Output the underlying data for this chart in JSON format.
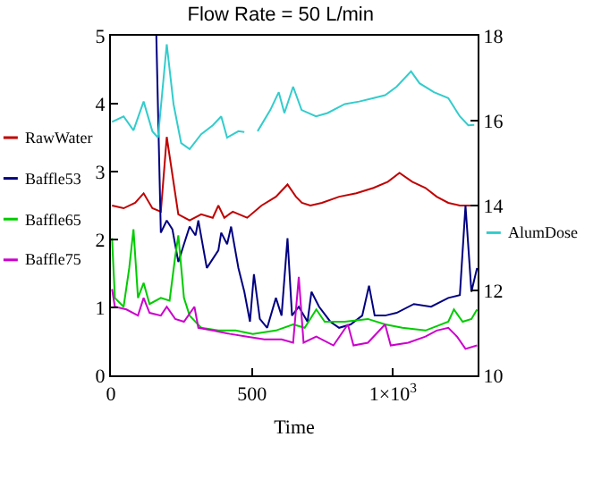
{
  "chart_data": {
    "type": "line",
    "title": "Flow Rate = 50 L/min",
    "xlabel": "Time",
    "xlim": [
      0,
      1300
    ],
    "xticks": [
      0,
      500,
      {
        "value": 1000,
        "label": "1×10$^{3}$"
      }
    ],
    "ylim": [
      0,
      5
    ],
    "yticks": [
      0,
      1,
      2,
      3,
      4,
      5
    ],
    "y2lim": [
      10,
      18
    ],
    "y2ticks": [
      10,
      12,
      14,
      16,
      18
    ],
    "grid": false,
    "legend": "left",
    "marker": "none",
    "line_style": "solid",
    "series": [
      {
        "name": "RawWater",
        "color": "#c00000",
        "x": [
          4,
          45,
          86,
          116,
          147,
          177,
          198,
          239,
          279,
          320,
          361,
          381,
          402,
          432,
          483,
          534,
          585,
          626,
          656,
          677,
          707,
          748,
          809,
          870,
          931,
          982,
          1023,
          1068,
          1115,
          1155,
          1196,
          1237,
          1288
        ],
        "values": [
          2.5,
          2.46,
          2.54,
          2.68,
          2.46,
          2.41,
          3.51,
          2.37,
          2.28,
          2.37,
          2.32,
          2.5,
          2.32,
          2.41,
          2.32,
          2.5,
          2.63,
          2.81,
          2.63,
          2.54,
          2.5,
          2.54,
          2.63,
          2.68,
          2.76,
          2.85,
          2.98,
          2.85,
          2.76,
          2.63,
          2.54,
          2.5,
          2.5
        ]
      },
      {
        "name": "Baffle53",
        "color": "#000080",
        "x": [
          161,
          177,
          198,
          218,
          239,
          259,
          279,
          300,
          310,
          340,
          381,
          391,
          412,
          426,
          452,
          473,
          493,
          507,
          528,
          554,
          585,
          605,
          626,
          642,
          666,
          697,
          711,
          738,
          778,
          809,
          850,
          891,
          915,
          935,
          972,
          1013,
          1074,
          1135,
          1196,
          1237,
          1257,
          1278,
          1298
        ],
        "values": [
          5,
          2.1,
          2.28,
          2.15,
          1.67,
          1.93,
          2.19,
          2.06,
          2.28,
          1.58,
          1.84,
          2.1,
          1.93,
          2.19,
          1.58,
          1.23,
          0.79,
          1.49,
          0.83,
          0.7,
          1.14,
          0.88,
          2.02,
          0.88,
          1.01,
          0.79,
          1.23,
          1.01,
          0.79,
          0.7,
          0.75,
          0.88,
          1.32,
          0.88,
          0.88,
          0.92,
          1.05,
          1.01,
          1.14,
          1.18,
          2.5,
          1.23,
          1.58
        ]
      },
      {
        "name": "Baffle65",
        "color": "#00cc00",
        "x": [
          4,
          14,
          45,
          65,
          80,
          96,
          116,
          137,
          177,
          208,
          228,
          239,
          259,
          279,
          320,
          381,
          442,
          503,
          585,
          646,
          687,
          728,
          758,
          829,
          911,
          972,
          1033,
          1115,
          1196,
          1216,
          1247,
          1278,
          1298
        ],
        "values": [
          2.02,
          1.14,
          1.01,
          1.58,
          2.15,
          1.14,
          1.36,
          1.05,
          1.14,
          1.1,
          1.75,
          2.06,
          1.14,
          0.88,
          0.7,
          0.66,
          0.66,
          0.61,
          0.66,
          0.75,
          0.7,
          0.97,
          0.79,
          0.79,
          0.83,
          0.75,
          0.7,
          0.66,
          0.79,
          0.97,
          0.79,
          0.83,
          0.97
        ]
      },
      {
        "name": "Baffle75",
        "color": "#cc00cc",
        "x": [
          4,
          14,
          55,
          96,
          116,
          137,
          177,
          198,
          228,
          259,
          296,
          310,
          361,
          422,
          483,
          544,
          605,
          646,
          666,
          683,
          728,
          789,
          840,
          860,
          911,
          972,
          992,
          1054,
          1115,
          1155,
          1196,
          1227,
          1257,
          1298
        ],
        "values": [
          1.27,
          1.01,
          0.97,
          0.88,
          1.14,
          0.92,
          0.88,
          1.01,
          0.83,
          0.79,
          1.01,
          0.7,
          0.66,
          0.61,
          0.57,
          0.53,
          0.53,
          0.48,
          1.45,
          0.48,
          0.57,
          0.44,
          0.75,
          0.44,
          0.48,
          0.75,
          0.44,
          0.48,
          0.57,
          0.66,
          0.7,
          0.57,
          0.39,
          0.44
        ]
      },
      {
        "name": "AlumDose",
        "color": "#33cccc",
        "axis": "y2",
        "x": [
          4,
          45,
          80,
          116,
          147,
          167,
          198,
          222,
          249,
          279,
          320,
          361,
          391,
          412,
          452,
          473,
          505,
          520,
          565,
          595,
          615,
          646,
          676,
          727,
          768,
          829,
          880,
          931,
          972,
          1013,
          1064,
          1094,
          1145,
          1196,
          1237,
          1267,
          1288
        ],
        "values": [
          15.97,
          16.1,
          15.77,
          16.45,
          15.75,
          15.6,
          17.8,
          16.39,
          15.47,
          15.33,
          15.68,
          15.89,
          16.1,
          15.6,
          15.75,
          15.73,
          null,
          15.75,
          16.25,
          16.67,
          16.18,
          16.8,
          16.25,
          16.1,
          16.18,
          16.39,
          16.45,
          16.53,
          16.6,
          16.8,
          17.16,
          16.88,
          16.67,
          16.53,
          16.1,
          15.89,
          15.9
        ]
      }
    ]
  }
}
